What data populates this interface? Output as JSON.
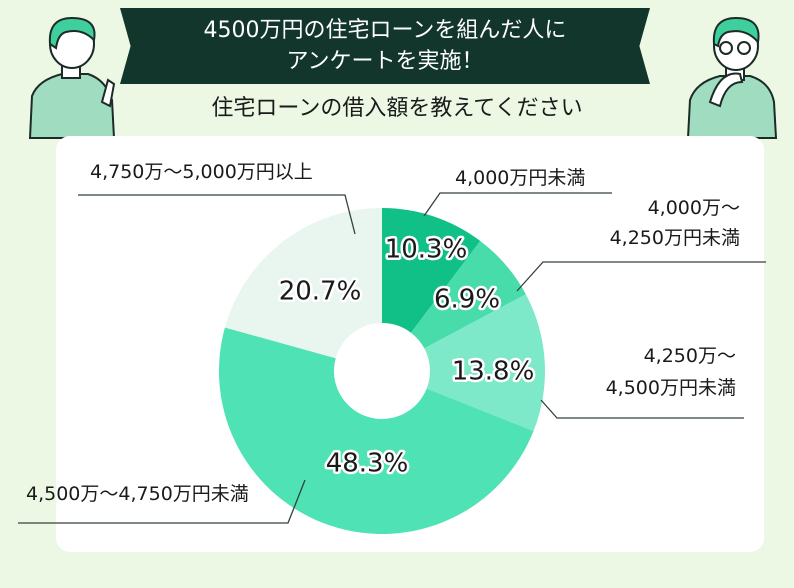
{
  "header": {
    "line1": "4500万円の住宅ローンを組んだ人に",
    "line2": "アンケートを実施！",
    "subtitle": "住宅ローンの借入額を教えてください"
  },
  "chart_data": {
    "type": "pie",
    "donut": true,
    "title": "住宅ローンの借入額を教えてください",
    "categories": [
      "4,000万円未満",
      "4,000万〜4,250万円未満",
      "4,250万〜4,500万円未満",
      "4,500万〜4,750万円未満",
      "4,750万〜5,000万円以上"
    ],
    "values": [
      10.3,
      6.9,
      13.8,
      48.3,
      20.7
    ],
    "value_labels": [
      "10.3%",
      "6.9%",
      "13.8%",
      "48.3%",
      "20.7%"
    ],
    "label_lines": [
      [
        "4,000万円未満"
      ],
      [
        "4,000万〜",
        "4,250万円未満"
      ],
      [
        "4,250万〜",
        "4,500万円未満"
      ],
      [
        "4,500万〜4,750万円未満"
      ],
      [
        "4,750万〜5,000万円以上"
      ]
    ],
    "colors": [
      "#10c087",
      "#48dcab",
      "#7ee9c8",
      "#4fe2b4",
      "#e9f6ef"
    ],
    "legend": "none"
  }
}
